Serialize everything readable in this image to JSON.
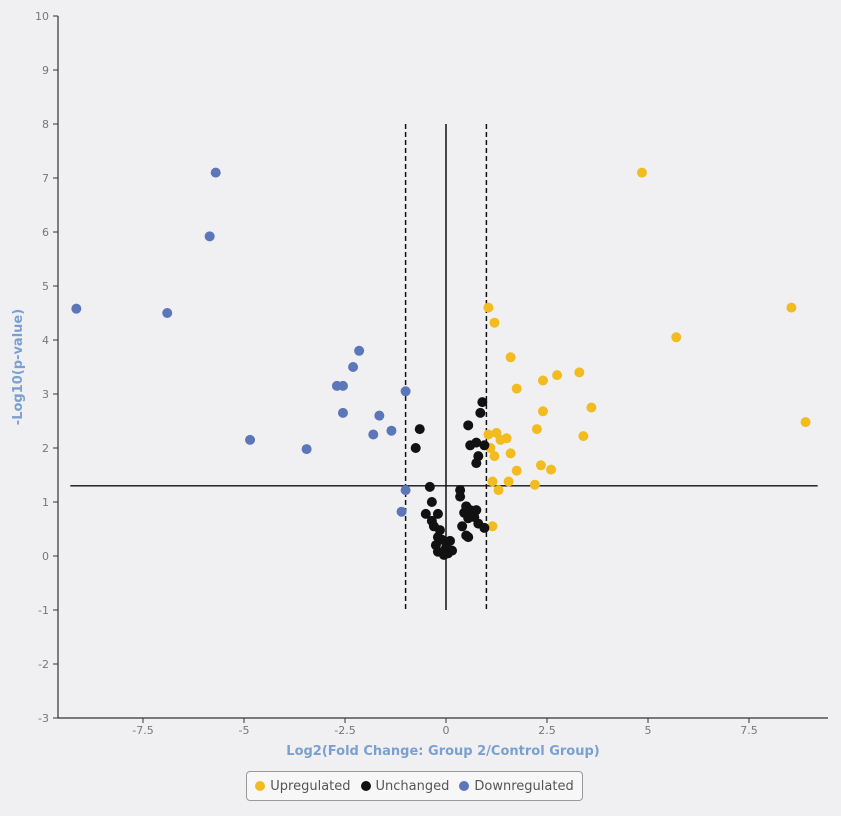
{
  "chart_data": {
    "type": "scatter",
    "title": "",
    "xlabel": "Log2(Fold Change: Group 2/Control Group)",
    "ylabel": "-Log10(p-value)",
    "xlim": [
      -9.5,
      9.5
    ],
    "ylim": [
      -3,
      10
    ],
    "x_ticks": [
      "-7.5",
      "-5",
      "-2.5",
      "0",
      "2.5",
      "5",
      "7.5"
    ],
    "y_ticks": [
      "-3",
      "-2",
      "-1",
      "0",
      "1",
      "2",
      "3",
      "4",
      "5",
      "6",
      "7",
      "8",
      "9",
      "10"
    ],
    "grid": false,
    "legend_position": "bottom-center",
    "threshold_lines": {
      "horizontal_y": 1.3,
      "horizontal_x_range": [
        -9.3,
        9.2
      ],
      "vertical_solid_x": 0,
      "vertical_dashed_x": [
        -1,
        1
      ],
      "vertical_y_range": [
        -1,
        8
      ]
    },
    "series": [
      {
        "name": "Upregulated",
        "color": "#f2bb1f",
        "points": [
          [
            4.85,
            7.1
          ],
          [
            8.55,
            4.6
          ],
          [
            8.9,
            2.48
          ],
          [
            5.7,
            4.05
          ],
          [
            1.05,
            4.6
          ],
          [
            1.2,
            4.32
          ],
          [
            1.6,
            3.68
          ],
          [
            1.75,
            3.1
          ],
          [
            2.4,
            3.25
          ],
          [
            2.75,
            3.35
          ],
          [
            3.3,
            3.4
          ],
          [
            3.6,
            2.75
          ],
          [
            2.4,
            2.68
          ],
          [
            3.4,
            2.22
          ],
          [
            2.25,
            2.35
          ],
          [
            1.05,
            2.25
          ],
          [
            1.25,
            2.28
          ],
          [
            1.35,
            2.15
          ],
          [
            1.5,
            2.18
          ],
          [
            1.1,
            2.0
          ],
          [
            1.2,
            1.85
          ],
          [
            1.6,
            1.9
          ],
          [
            1.75,
            1.58
          ],
          [
            2.35,
            1.68
          ],
          [
            2.6,
            1.6
          ],
          [
            1.15,
            1.38
          ],
          [
            1.55,
            1.38
          ],
          [
            1.3,
            1.22
          ],
          [
            2.2,
            1.32
          ],
          [
            1.15,
            0.55
          ]
        ]
      },
      {
        "name": "Unchanged",
        "color": "#111111",
        "points": [
          [
            -0.65,
            2.35
          ],
          [
            -0.75,
            2.0
          ],
          [
            0.55,
            2.42
          ],
          [
            0.9,
            2.85
          ],
          [
            0.85,
            2.65
          ],
          [
            0.6,
            2.05
          ],
          [
            0.75,
            2.1
          ],
          [
            0.95,
            2.05
          ],
          [
            0.8,
            1.85
          ],
          [
            0.75,
            1.72
          ],
          [
            -0.4,
            1.28
          ],
          [
            -0.35,
            1.0
          ],
          [
            -0.5,
            0.78
          ],
          [
            -0.35,
            0.65
          ],
          [
            -0.2,
            0.78
          ],
          [
            0.35,
            1.22
          ],
          [
            0.35,
            1.1
          ],
          [
            0.5,
            0.92
          ],
          [
            0.45,
            0.8
          ],
          [
            0.6,
            0.85
          ],
          [
            0.75,
            0.85
          ],
          [
            0.55,
            0.7
          ],
          [
            0.7,
            0.72
          ],
          [
            0.4,
            0.55
          ],
          [
            0.8,
            0.6
          ],
          [
            0.95,
            0.52
          ],
          [
            -0.15,
            0.48
          ],
          [
            -0.3,
            0.55
          ],
          [
            -0.2,
            0.35
          ],
          [
            -0.1,
            0.3
          ],
          [
            0.1,
            0.28
          ],
          [
            0.5,
            0.38
          ],
          [
            0.55,
            0.35
          ],
          [
            -0.25,
            0.2
          ],
          [
            -0.2,
            0.08
          ],
          [
            0.0,
            0.15
          ],
          [
            0.05,
            0.05
          ],
          [
            0.15,
            0.1
          ],
          [
            -0.05,
            0.02
          ]
        ]
      },
      {
        "name": "Downregulated",
        "color": "#5b76b9",
        "points": [
          [
            -5.7,
            7.1
          ],
          [
            -5.85,
            5.92
          ],
          [
            -9.15,
            4.58
          ],
          [
            -6.9,
            4.5
          ],
          [
            -2.15,
            3.8
          ],
          [
            -2.3,
            3.5
          ],
          [
            -2.7,
            3.15
          ],
          [
            -2.55,
            3.15
          ],
          [
            -1.0,
            3.05
          ],
          [
            -2.55,
            2.65
          ],
          [
            -1.65,
            2.6
          ],
          [
            -1.35,
            2.32
          ],
          [
            -1.8,
            2.25
          ],
          [
            -4.85,
            2.15
          ],
          [
            -3.45,
            1.98
          ],
          [
            -1.0,
            1.22
          ],
          [
            -1.1,
            0.82
          ]
        ]
      }
    ]
  }
}
